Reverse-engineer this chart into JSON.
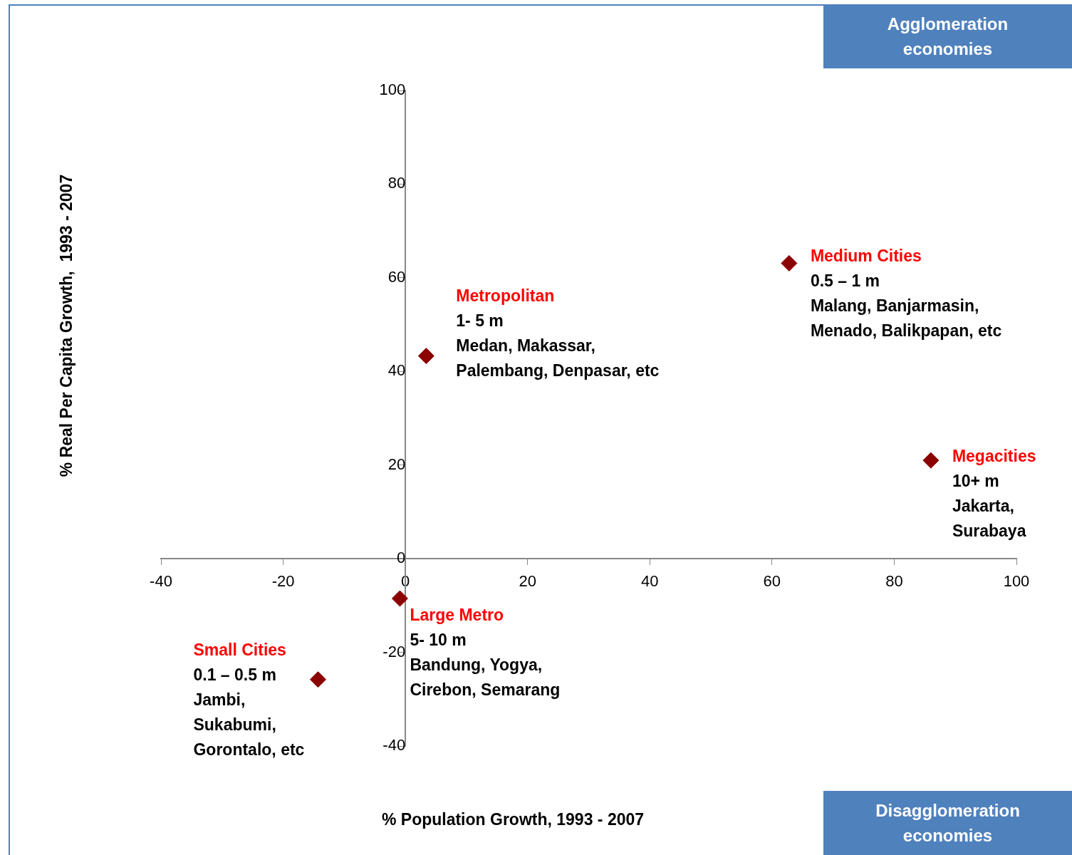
{
  "chart_data": {
    "type": "scatter",
    "xlabel": "% Population Growth, 1993 - 2007",
    "ylabel": "% Real Per Capita Growth,  1993 - 2007",
    "x": [
      3.4,
      62.8,
      86.0,
      -0.9,
      -14.3
    ],
    "series": [
      {
        "color": "#8b0000",
        "values": [
          43.3,
          63.1,
          21.0,
          -8.5,
          -25.8
        ]
      }
    ],
    "xlim": [
      -40,
      100
    ],
    "xticks": [
      -40,
      -20,
      0,
      20,
      40,
      60,
      80,
      100
    ],
    "ylim": [
      -40,
      100
    ],
    "yticks": [
      -40,
      -20,
      0,
      20,
      40,
      60,
      80,
      100
    ],
    "marker": "diamond",
    "grid": false,
    "legend": false,
    "annotations": [
      "Agglomeration economies",
      "Disagglomeration economies",
      {
        "text": "Metropolitan\n1- 5 m\nMedan, Makassar,\nPalembang, Denpasar, etc",
        "x": 3.4,
        "y": 43.3
      },
      {
        "text": "Medium Cities\n0.5 – 1 m\nMalang, Banjarmasin,\nMenado, Balikpapan, etc",
        "x": 62.8,
        "y": 63.1
      },
      {
        "text": "Megacities\n10+ m\nJakarta,\nSurabaya",
        "x": 86.0,
        "y": 21.0
      },
      {
        "text": "Large Metro\n5- 10 m\nBandung, Yogya,\nCirebon, Semarang",
        "x": -0.9,
        "y": -8.5
      },
      {
        "text": "Small Cities\n0.1 – 0.5 m\nJambi,\nSukabumi,\nGorontalo, etc",
        "x": -14.3,
        "y": -25.8
      }
    ]
  }
}
